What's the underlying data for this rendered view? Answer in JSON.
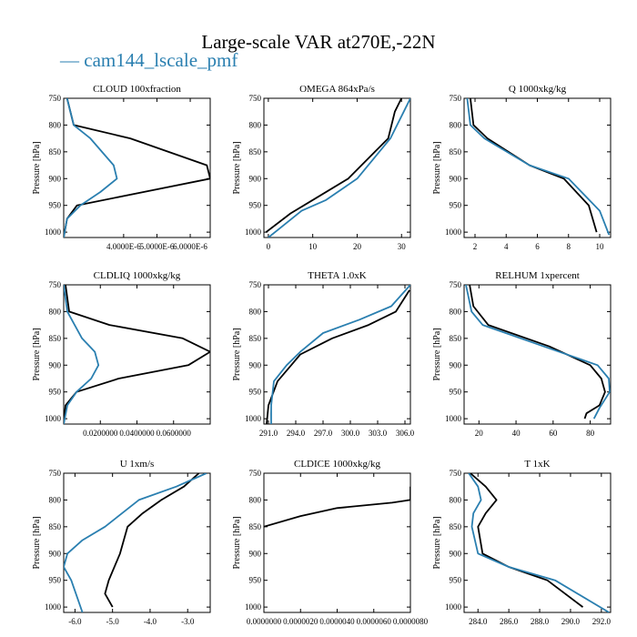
{
  "title": "Large-scale VAR at270E,-22N",
  "legend": {
    "dash": "—",
    "label": "cam144_lscale_pmf",
    "position": "top-left"
  },
  "colors": {
    "series_black": "#000000",
    "series_blue": "#2a7fb0",
    "axes": "#000000"
  },
  "chart_data": [
    {
      "type": "line",
      "title": "CLOUD 100xfraction",
      "ylabel": "Pressure [hPa]",
      "xlim": [
        2.2e-06,
        6.6e-06
      ],
      "ylim": [
        1010,
        750
      ],
      "y_inverted": true,
      "xticks": [
        4e-06,
        5e-06,
        6e-06
      ],
      "xtick_labels": [
        "4.0000E-6",
        "5.0000E-6",
        "6.0000E-6"
      ],
      "yticks": [
        750,
        800,
        850,
        900,
        950,
        1000
      ],
      "ytick_labels": [
        "750",
        "800",
        "850",
        "900",
        "950",
        "1000"
      ],
      "series": [
        {
          "color": "black",
          "x": [
            2.3e-06,
            2.5e-06,
            4.2e-06,
            6.5e-06,
            6.6e-06,
            4.6e-06,
            2.6e-06,
            2.3e-06,
            2.2e-06
          ],
          "y": [
            750,
            800,
            825,
            875,
            900,
            925,
            950,
            975,
            1010
          ]
        },
        {
          "color": "blue",
          "x": [
            2.3e-06,
            2.5e-06,
            3e-06,
            3.7e-06,
            3.8e-06,
            3.3e-06,
            2.7e-06,
            2.3e-06,
            2.2e-06
          ],
          "y": [
            750,
            800,
            825,
            875,
            900,
            925,
            950,
            975,
            1010
          ]
        }
      ]
    },
    {
      "type": "line",
      "title": "OMEGA 864xPa/s",
      "ylabel": "Pressure [hPa]",
      "xlim": [
        -1,
        32
      ],
      "ylim": [
        1010,
        750
      ],
      "y_inverted": true,
      "xticks": [
        0,
        10,
        20,
        30
      ],
      "xtick_labels": [
        "0",
        "10",
        "20",
        "30"
      ],
      "yticks": [
        750,
        800,
        850,
        900,
        950,
        1000
      ],
      "ytick_labels": [
        "750",
        "800",
        "850",
        "900",
        "950",
        "1000"
      ],
      "series": [
        {
          "color": "black",
          "x": [
            30.0,
            28.5,
            27.0,
            24.0,
            18.0,
            10.0,
            5.0,
            -0.5
          ],
          "y": [
            750,
            775,
            825,
            850,
            900,
            940,
            965,
            1000
          ]
        },
        {
          "color": "blue",
          "x": [
            32.0,
            30.5,
            27.5,
            24.0,
            20.0,
            13.0,
            7.5,
            0.0
          ],
          "y": [
            750,
            775,
            825,
            860,
            900,
            940,
            960,
            1010
          ]
        }
      ]
    },
    {
      "type": "line",
      "title": "Q 1000xkg/kg",
      "ylabel": "Pressure [hPa]",
      "xlim": [
        1.3,
        10.7
      ],
      "ylim": [
        1010,
        750
      ],
      "y_inverted": true,
      "xticks": [
        2,
        4,
        6,
        8,
        10
      ],
      "xtick_labels": [
        "2",
        "4",
        "6",
        "8",
        "10"
      ],
      "yticks": [
        750,
        800,
        850,
        900,
        950,
        1000
      ],
      "ytick_labels": [
        "750",
        "800",
        "850",
        "900",
        "950",
        "1000"
      ],
      "series": [
        {
          "color": "black",
          "x": [
            1.7,
            1.9,
            2.8,
            5.5,
            7.7,
            9.3,
            9.8
          ],
          "y": [
            750,
            800,
            825,
            875,
            900,
            950,
            1000
          ]
        },
        {
          "color": "blue",
          "x": [
            1.5,
            1.7,
            2.6,
            5.5,
            8.0,
            10.0,
            10.6
          ],
          "y": [
            750,
            800,
            825,
            875,
            900,
            960,
            1005
          ]
        }
      ]
    },
    {
      "type": "line",
      "title": "CLDLIQ 1000xkg/kg",
      "ylabel": "Pressure [hPa]",
      "xlim": [
        0.0,
        0.08
      ],
      "ylim": [
        1010,
        750
      ],
      "y_inverted": true,
      "xticks": [
        0.02,
        0.04,
        0.06
      ],
      "xtick_labels": [
        "0.0200000",
        "0.0400000",
        "0.0600000"
      ],
      "yticks": [
        750,
        800,
        850,
        900,
        950,
        1000
      ],
      "ytick_labels": [
        "750",
        "800",
        "850",
        "900",
        "950",
        "1000"
      ],
      "series": [
        {
          "color": "black",
          "x": [
            0.001,
            0.003,
            0.025,
            0.065,
            0.08,
            0.068,
            0.03,
            0.007,
            0.001,
            0.0
          ],
          "y": [
            750,
            800,
            825,
            850,
            875,
            900,
            925,
            950,
            975,
            1010
          ]
        },
        {
          "color": "blue",
          "x": [
            0.0,
            0.002,
            0.01,
            0.017,
            0.019,
            0.015,
            0.007,
            0.002,
            0.0
          ],
          "y": [
            750,
            800,
            850,
            875,
            900,
            925,
            950,
            975,
            1010
          ]
        }
      ]
    },
    {
      "type": "line",
      "title": "THETA 1.0xK",
      "ylabel": "Pressure [hPa]",
      "xlim": [
        290.5,
        306.6
      ],
      "ylim": [
        1010,
        750
      ],
      "y_inverted": true,
      "xticks": [
        291.0,
        294.0,
        297.0,
        300.0,
        303.0,
        306.0
      ],
      "xtick_labels": [
        "291.0",
        "294.0",
        "297.0",
        "300.0",
        "303.0",
        "306.0"
      ],
      "yticks": [
        750,
        800,
        850,
        900,
        950,
        1000
      ],
      "ytick_labels": [
        "750",
        "800",
        "850",
        "900",
        "950",
        "1000"
      ],
      "series": [
        {
          "color": "black",
          "x": [
            306.5,
            305.0,
            302.0,
            298.0,
            294.5,
            293.5,
            292.0,
            291.0,
            290.8
          ],
          "y": [
            760,
            800,
            825,
            850,
            880,
            900,
            930,
            975,
            1010
          ]
        },
        {
          "color": "blue",
          "x": [
            306.6,
            304.5,
            301.0,
            297.0,
            294.5,
            293.0,
            291.6,
            291.3,
            291.3
          ],
          "y": [
            750,
            790,
            815,
            840,
            875,
            900,
            930,
            975,
            1010
          ]
        }
      ]
    },
    {
      "type": "line",
      "title": "RELHUM 1xpercent",
      "ylabel": "Pressure [hPa]",
      "xlim": [
        12,
        91
      ],
      "ylim": [
        1010,
        750
      ],
      "y_inverted": true,
      "xticks": [
        20,
        40,
        60,
        80
      ],
      "xtick_labels": [
        "20",
        "40",
        "60",
        "80"
      ],
      "yticks": [
        750,
        800,
        850,
        900,
        950,
        1000
      ],
      "ytick_labels": [
        "750",
        "800",
        "850",
        "900",
        "950",
        "1000"
      ],
      "series": [
        {
          "color": "black",
          "x": [
            15.0,
            17.0,
            25.0,
            58.0,
            80.0,
            86.0,
            88.0,
            85.0,
            78.0,
            77.0
          ],
          "y": [
            750,
            790,
            825,
            865,
            900,
            925,
            950,
            975,
            990,
            1000
          ]
        },
        {
          "color": "blue",
          "x": [
            13.0,
            16.0,
            22.0,
            55.0,
            84.0,
            90.0,
            90.5,
            85.0,
            82.0
          ],
          "y": [
            750,
            800,
            825,
            865,
            900,
            925,
            950,
            980,
            1000
          ]
        }
      ]
    },
    {
      "type": "line",
      "title": "U 1xm/s",
      "ylabel": "Pressure [hPa]",
      "xlim": [
        -6.3,
        -2.4
      ],
      "ylim": [
        1010,
        750
      ],
      "y_inverted": true,
      "xticks": [
        -6.0,
        -5.0,
        -4.0,
        -3.0
      ],
      "xtick_labels": [
        "-6.0",
        "-5.0",
        "-4.0",
        "-3.0"
      ],
      "yticks": [
        750,
        800,
        850,
        900,
        950,
        1000
      ],
      "ytick_labels": [
        "750",
        "800",
        "850",
        "900",
        "950",
        "1000"
      ],
      "series": [
        {
          "color": "black",
          "x": [
            -2.7,
            -3.1,
            -3.7,
            -4.2,
            -4.6,
            -4.8,
            -5.1,
            -5.2,
            -5.0
          ],
          "y": [
            750,
            775,
            800,
            825,
            850,
            900,
            950,
            975,
            1000
          ]
        },
        {
          "color": "blue",
          "x": [
            -2.5,
            -3.3,
            -4.3,
            -5.2,
            -5.8,
            -6.2,
            -6.3,
            -6.1,
            -5.8
          ],
          "y": [
            750,
            775,
            800,
            850,
            875,
            900,
            925,
            950,
            1010
          ]
        }
      ]
    },
    {
      "type": "line",
      "title": "CLDICE 1000xkg/kg",
      "ylabel": "Pressure [hPa]",
      "xlim": [
        0.0,
        8e-06
      ],
      "ylim": [
        1010,
        750
      ],
      "y_inverted": true,
      "xticks": [
        0.0,
        2e-06,
        4e-06,
        6e-06,
        8e-06
      ],
      "xtick_labels": [
        "0.0000000",
        "0.0000020",
        "0.0000040",
        "0.0000060",
        "0.0000080"
      ],
      "yticks": [
        750,
        800,
        850,
        900,
        950,
        1000
      ],
      "ytick_labels": [
        "750",
        "800",
        "850",
        "900",
        "950",
        "1000"
      ],
      "series": [
        {
          "color": "black",
          "x": [
            0.0,
            2e-06,
            4e-06,
            7e-06,
            8e-06,
            8e-06
          ],
          "y": [
            850,
            830,
            815,
            805,
            800,
            775
          ]
        }
      ]
    },
    {
      "type": "line",
      "title": "T 1xK",
      "ylabel": "Pressure [hPa]",
      "xlim": [
        283.1,
        292.6
      ],
      "ylim": [
        1010,
        750
      ],
      "y_inverted": true,
      "xticks": [
        284.0,
        286.0,
        288.0,
        290.0,
        292.0
      ],
      "xtick_labels": [
        "284.0",
        "286.0",
        "288.0",
        "290.0",
        "292.0"
      ],
      "yticks": [
        750,
        800,
        850,
        900,
        950,
        1000
      ],
      "ytick_labels": [
        "750",
        "800",
        "850",
        "900",
        "950",
        "1000"
      ],
      "series": [
        {
          "color": "black",
          "x": [
            283.5,
            284.5,
            285.2,
            284.5,
            284.0,
            284.3,
            286.0,
            288.5,
            290.8
          ],
          "y": [
            750,
            775,
            800,
            825,
            850,
            900,
            925,
            950,
            1000
          ]
        },
        {
          "color": "blue",
          "x": [
            283.4,
            284.0,
            284.2,
            283.7,
            283.6,
            284.0,
            286.0,
            289.0,
            292.5
          ],
          "y": [
            750,
            775,
            800,
            825,
            850,
            900,
            925,
            950,
            1010
          ]
        }
      ]
    }
  ]
}
